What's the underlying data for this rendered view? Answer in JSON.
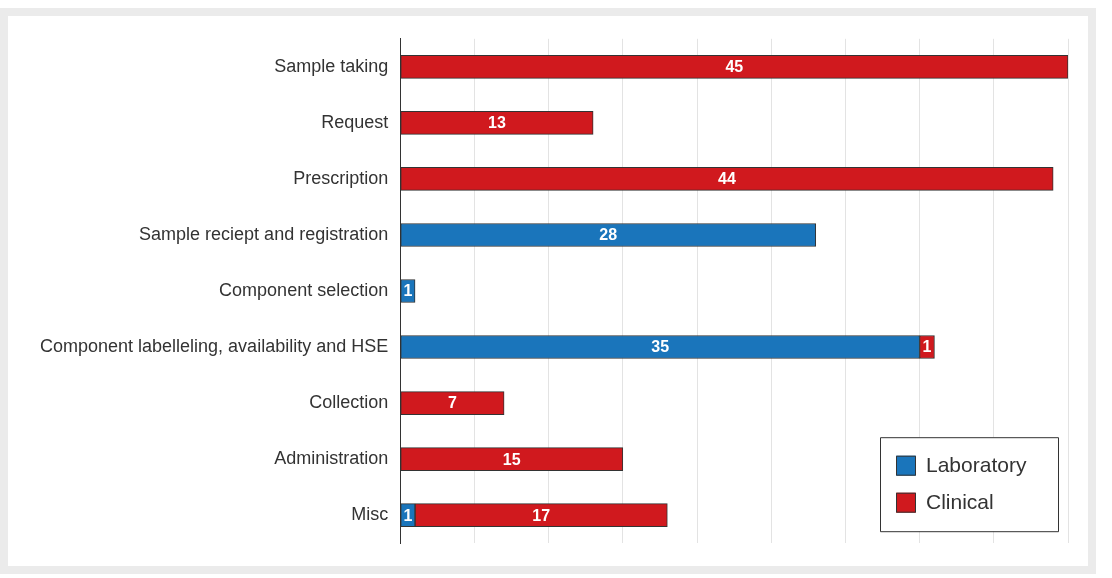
{
  "chart_data": {
    "type": "bar",
    "orientation": "horizontal",
    "stacked": true,
    "categories": [
      "Sample taking",
      "Request",
      "Prescription",
      "Sample reciept and registration",
      "Component selection",
      "Component labelleling, availability and HSE",
      "Collection",
      "Administration",
      "Misc"
    ],
    "series": [
      {
        "name": "Laboratory",
        "color": "#1a75bb",
        "values": [
          null,
          null,
          null,
          28,
          1,
          35,
          null,
          null,
          1
        ]
      },
      {
        "name": "Clinical",
        "color": "#d0191e",
        "values": [
          45,
          13,
          44,
          null,
          null,
          1,
          7,
          15,
          17
        ]
      }
    ],
    "xlim": [
      0,
      45
    ],
    "xticks": [
      {
        "value": 0,
        "label": null
      },
      {
        "value": 5,
        "label": null
      },
      {
        "value": 10,
        "label": null
      },
      {
        "value": 15,
        "label": null
      },
      {
        "value": 20,
        "label": null
      },
      {
        "value": 25,
        "label": null
      },
      {
        "value": 30,
        "label": null
      },
      {
        "value": 35,
        "label": null
      },
      {
        "value": 40,
        "label": null
      },
      {
        "value": 45,
        "label": null
      }
    ],
    "tick_labels": "y",
    "grid": "x",
    "legend": "bottom right",
    "data_labels": true
  }
}
